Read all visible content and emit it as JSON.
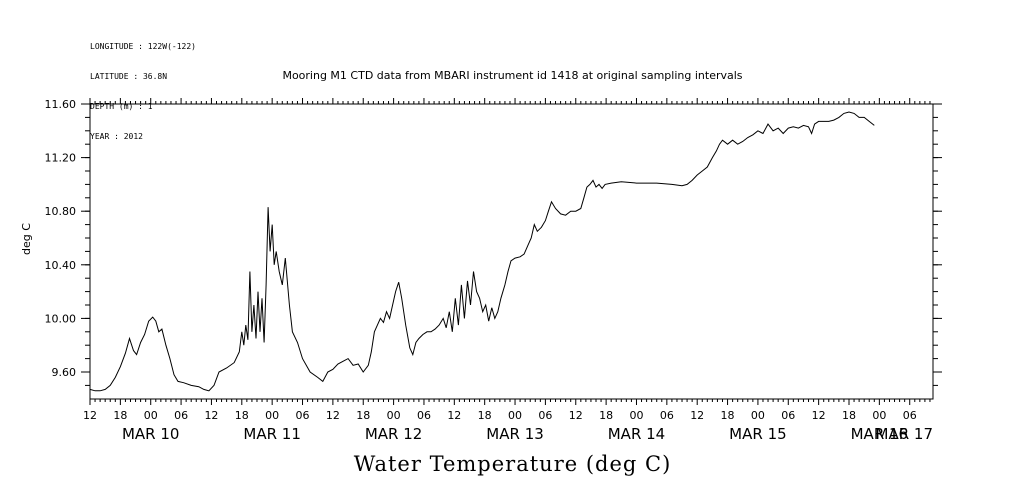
{
  "metadata": {
    "longitude": "LONGITUDE : 122W(-122)",
    "latitude": "LATITUDE : 36.8N",
    "depth": "DEPTH (m) : 1",
    "year": "YEAR : 2012"
  },
  "colors": {
    "line": "#000000",
    "background": "#ffffff"
  },
  "chart_data": {
    "type": "line",
    "title": "Mooring M1 CTD data from MBARI instrument id 1418 at original sampling intervals",
    "xlabel": "Water Temperature (deg C)",
    "ylabel": "deg C",
    "x_unit": "hours since MAR 09 12:00",
    "xlim": [
      0,
      166
    ],
    "ylim": [
      9.45,
      11.6
    ],
    "y_ticks": [
      9.6,
      10.0,
      10.4,
      10.8,
      11.2,
      11.6
    ],
    "y_tick_labels": [
      "9.60",
      "10.00",
      "10.40",
      "10.80",
      "11.20",
      "11.60"
    ],
    "x_hour_tick_labels": [
      {
        "x": 0,
        "label": "12"
      },
      {
        "x": 6,
        "label": "18"
      },
      {
        "x": 12,
        "label": "00"
      },
      {
        "x": 18,
        "label": "06"
      },
      {
        "x": 24,
        "label": "12"
      },
      {
        "x": 30,
        "label": "18"
      },
      {
        "x": 36,
        "label": "00"
      },
      {
        "x": 42,
        "label": "06"
      },
      {
        "x": 48,
        "label": "12"
      },
      {
        "x": 54,
        "label": "18"
      },
      {
        "x": 60,
        "label": "00"
      },
      {
        "x": 66,
        "label": "06"
      },
      {
        "x": 72,
        "label": "12"
      },
      {
        "x": 78,
        "label": "18"
      },
      {
        "x": 84,
        "label": "00"
      },
      {
        "x": 90,
        "label": "06"
      },
      {
        "x": 96,
        "label": "12"
      },
      {
        "x": 102,
        "label": "18"
      },
      {
        "x": 108,
        "label": "00"
      },
      {
        "x": 114,
        "label": "06"
      },
      {
        "x": 120,
        "label": "12"
      },
      {
        "x": 126,
        "label": "18"
      },
      {
        "x": 132,
        "label": "00"
      },
      {
        "x": 138,
        "label": "06"
      },
      {
        "x": 144,
        "label": "12"
      },
      {
        "x": 150,
        "label": "18"
      },
      {
        "x": 156,
        "label": "00"
      },
      {
        "x": 162,
        "label": "06"
      }
    ],
    "x_date_labels": [
      {
        "x": 12,
        "label": "MAR 10"
      },
      {
        "x": 36,
        "label": "MAR 11"
      },
      {
        "x": 60,
        "label": "MAR 12"
      },
      {
        "x": 84,
        "label": "MAR 13"
      },
      {
        "x": 108,
        "label": "MAR 14"
      },
      {
        "x": 132,
        "label": "MAR 15"
      },
      {
        "x": 156,
        "label": "MAR 16"
      },
      {
        "x": 180,
        "label": "MAR 17"
      }
    ],
    "series": [
      {
        "values": [
          [
            0,
            9.47
          ],
          [
            1,
            9.46
          ],
          [
            2,
            9.46
          ],
          [
            3,
            9.47
          ],
          [
            4,
            9.5
          ],
          [
            5,
            9.56
          ],
          [
            6,
            9.64
          ],
          [
            7,
            9.74
          ],
          [
            7.8,
            9.85
          ],
          [
            8.6,
            9.76
          ],
          [
            9.2,
            9.73
          ],
          [
            10,
            9.82
          ],
          [
            10.8,
            9.88
          ],
          [
            11.6,
            9.98
          ],
          [
            12.4,
            10.01
          ],
          [
            13,
            9.98
          ],
          [
            13.6,
            9.9
          ],
          [
            14.2,
            9.92
          ],
          [
            15,
            9.8
          ],
          [
            15.8,
            9.7
          ],
          [
            16.6,
            9.58
          ],
          [
            17.4,
            9.53
          ],
          [
            18.5,
            9.52
          ],
          [
            20,
            9.5
          ],
          [
            21.5,
            9.49
          ],
          [
            22.5,
            9.47
          ],
          [
            23.5,
            9.46
          ],
          [
            24.5,
            9.5
          ],
          [
            25.5,
            9.6
          ],
          [
            27,
            9.63
          ],
          [
            28.5,
            9.67
          ],
          [
            29.5,
            9.75
          ],
          [
            30,
            9.9
          ],
          [
            30.4,
            9.8
          ],
          [
            30.8,
            9.95
          ],
          [
            31.2,
            9.84
          ],
          [
            31.6,
            10.35
          ],
          [
            32,
            9.9
          ],
          [
            32.4,
            10.1
          ],
          [
            32.8,
            9.85
          ],
          [
            33.2,
            10.2
          ],
          [
            33.6,
            9.9
          ],
          [
            34,
            10.15
          ],
          [
            34.4,
            9.82
          ],
          [
            34.8,
            10.25
          ],
          [
            35.2,
            10.83
          ],
          [
            35.6,
            10.5
          ],
          [
            36,
            10.7
          ],
          [
            36.4,
            10.4
          ],
          [
            36.8,
            10.5
          ],
          [
            37.4,
            10.35
          ],
          [
            38,
            10.25
          ],
          [
            38.6,
            10.45
          ],
          [
            39.4,
            10.1
          ],
          [
            40,
            9.9
          ],
          [
            41,
            9.82
          ],
          [
            42,
            9.7
          ],
          [
            43.5,
            9.6
          ],
          [
            45,
            9.56
          ],
          [
            46,
            9.53
          ],
          [
            47,
            9.6
          ],
          [
            48,
            9.62
          ],
          [
            49,
            9.66
          ],
          [
            50,
            9.68
          ],
          [
            51,
            9.7
          ],
          [
            52,
            9.65
          ],
          [
            53,
            9.66
          ],
          [
            54,
            9.6
          ],
          [
            55,
            9.65
          ],
          [
            55.6,
            9.75
          ],
          [
            56.2,
            9.9
          ],
          [
            56.8,
            9.95
          ],
          [
            57.4,
            10.0
          ],
          [
            58,
            9.97
          ],
          [
            58.6,
            10.05
          ],
          [
            59.2,
            10.0
          ],
          [
            59.8,
            10.1
          ],
          [
            60.4,
            10.2
          ],
          [
            61,
            10.27
          ],
          [
            61.6,
            10.15
          ],
          [
            62.4,
            9.95
          ],
          [
            63.2,
            9.78
          ],
          [
            63.8,
            9.73
          ],
          [
            64.4,
            9.82
          ],
          [
            65,
            9.85
          ],
          [
            65.8,
            9.88
          ],
          [
            66.6,
            9.9
          ],
          [
            67.4,
            9.9
          ],
          [
            68.2,
            9.92
          ],
          [
            69,
            9.95
          ],
          [
            69.8,
            10.0
          ],
          [
            70.4,
            9.93
          ],
          [
            71,
            10.05
          ],
          [
            71.6,
            9.9
          ],
          [
            72.2,
            10.15
          ],
          [
            72.8,
            9.95
          ],
          [
            73.4,
            10.25
          ],
          [
            74,
            10.0
          ],
          [
            74.6,
            10.28
          ],
          [
            75.2,
            10.1
          ],
          [
            75.8,
            10.35
          ],
          [
            76.4,
            10.2
          ],
          [
            77,
            10.15
          ],
          [
            77.6,
            10.05
          ],
          [
            78.2,
            10.1
          ],
          [
            78.8,
            9.98
          ],
          [
            79.4,
            10.08
          ],
          [
            80,
            10.0
          ],
          [
            80.6,
            10.05
          ],
          [
            81.2,
            10.15
          ],
          [
            82,
            10.25
          ],
          [
            82.6,
            10.35
          ],
          [
            83.2,
            10.43
          ],
          [
            84,
            10.45
          ],
          [
            85,
            10.46
          ],
          [
            85.8,
            10.48
          ],
          [
            86.6,
            10.55
          ],
          [
            87.2,
            10.6
          ],
          [
            87.8,
            10.7
          ],
          [
            88.4,
            10.65
          ],
          [
            89.2,
            10.68
          ],
          [
            90,
            10.73
          ],
          [
            90.6,
            10.8
          ],
          [
            91.2,
            10.87
          ],
          [
            92,
            10.82
          ],
          [
            93,
            10.78
          ],
          [
            94,
            10.77
          ],
          [
            95,
            10.8
          ],
          [
            96,
            10.8
          ],
          [
            97,
            10.82
          ],
          [
            97.6,
            10.9
          ],
          [
            98.2,
            10.98
          ],
          [
            98.8,
            11.0
          ],
          [
            99.4,
            11.03
          ],
          [
            100,
            10.98
          ],
          [
            100.6,
            11.0
          ],
          [
            101.2,
            10.97
          ],
          [
            101.8,
            11.0
          ],
          [
            103,
            11.01
          ],
          [
            105,
            11.02
          ],
          [
            108,
            11.01
          ],
          [
            112,
            11.01
          ],
          [
            115,
            11.0
          ],
          [
            117,
            10.99
          ],
          [
            118,
            11.0
          ],
          [
            119,
            11.03
          ],
          [
            120,
            11.07
          ],
          [
            121,
            11.1
          ],
          [
            122,
            11.13
          ],
          [
            123,
            11.2
          ],
          [
            123.8,
            11.25
          ],
          [
            124.4,
            11.3
          ],
          [
            125,
            11.33
          ],
          [
            126,
            11.3
          ],
          [
            127,
            11.33
          ],
          [
            128,
            11.3
          ],
          [
            129,
            11.32
          ],
          [
            130,
            11.35
          ],
          [
            131,
            11.37
          ],
          [
            132,
            11.4
          ],
          [
            133,
            11.38
          ],
          [
            134,
            11.45
          ],
          [
            135,
            11.4
          ],
          [
            136,
            11.42
          ],
          [
            137,
            11.38
          ],
          [
            138,
            11.42
          ],
          [
            139,
            11.43
          ],
          [
            140,
            11.42
          ],
          [
            141,
            11.44
          ],
          [
            142,
            11.43
          ],
          [
            142.6,
            11.38
          ],
          [
            143.2,
            11.45
          ],
          [
            144,
            11.47
          ],
          [
            145,
            11.47
          ],
          [
            146,
            11.47
          ],
          [
            147,
            11.48
          ],
          [
            148,
            11.5
          ],
          [
            149,
            11.53
          ],
          [
            150,
            11.54
          ],
          [
            151,
            11.53
          ],
          [
            152,
            11.5
          ],
          [
            153,
            11.5
          ],
          [
            154,
            11.47
          ],
          [
            155,
            11.44
          ]
        ]
      }
    ]
  }
}
